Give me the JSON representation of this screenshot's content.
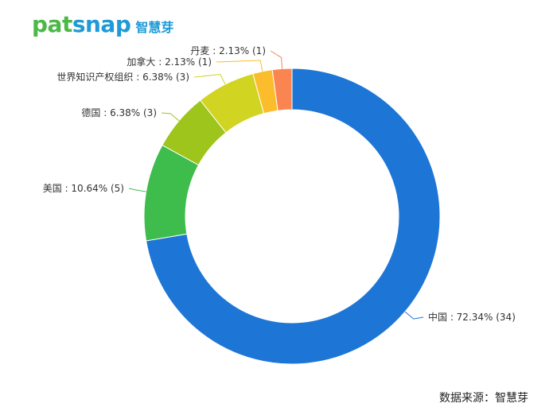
{
  "logo": {
    "word_a": "pat",
    "word_b": "snap",
    "cn": "智慧芽"
  },
  "source": "数据来源：智慧芽",
  "chart_data": {
    "type": "pie",
    "donut": true,
    "start_angle_deg": 0,
    "direction": "clockwise",
    "title": "",
    "slices": [
      {
        "name": "中国",
        "percent": 72.34,
        "count": 34,
        "label": "中国 : 72.34% (34)",
        "color": "#1d76d6",
        "side": "right"
      },
      {
        "name": "美国",
        "percent": 10.64,
        "count": 5,
        "label": "美国 : 10.64% (5)",
        "color": "#3ebc4c",
        "side": "left"
      },
      {
        "name": "德国",
        "percent": 6.38,
        "count": 3,
        "label": "德国 : 6.38% (3)",
        "color": "#9dc51c",
        "side": "left"
      },
      {
        "name": "世界知识产权组织",
        "percent": 6.38,
        "count": 3,
        "label": "世界知识产权组织 : 6.38% (3)",
        "color": "#d1d421",
        "side": "left"
      },
      {
        "name": "加拿大",
        "percent": 2.13,
        "count": 1,
        "label": "加拿大 : 2.13% (1)",
        "color": "#fbbd2c",
        "side": "left"
      },
      {
        "name": "丹麦",
        "percent": 2.13,
        "count": 1,
        "label": "丹麦 : 2.13% (1)",
        "color": "#fb8550",
        "side": "left"
      }
    ]
  }
}
